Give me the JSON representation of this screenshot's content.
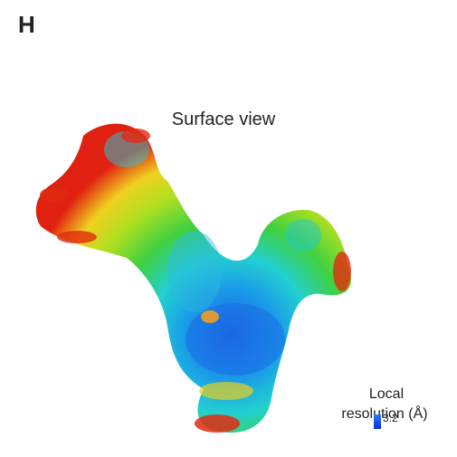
{
  "panel_label": "H",
  "title": "Surface view",
  "legend": {
    "title_line1": "Local",
    "title_line2": "resolution (Å)",
    "scale_label": "3.2"
  }
}
